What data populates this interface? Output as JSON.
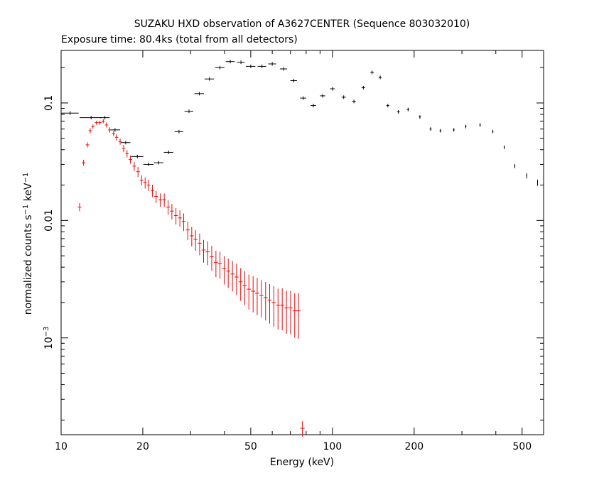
{
  "chart_data": {
    "type": "scatter",
    "title": "SUZAKU HXD observation of A3627CENTER (Sequence 803032010)",
    "subtitle": "Exposure time: 80.4ks (total from all detectors)",
    "xlabel": "Energy (keV)",
    "ylabel": {
      "base": "normalized counts s",
      "sup1": "−1",
      "mid": " keV",
      "sup2": "−1"
    },
    "x_scale": "log",
    "y_scale": "log",
    "xlim": [
      10,
      600
    ],
    "ylim": [
      0.00015,
      0.28
    ],
    "x_ticks": [
      10,
      20,
      50,
      100,
      200,
      500
    ],
    "y_tick_labels": [
      {
        "value": 0.1,
        "text": "0.1"
      },
      {
        "value": 0.01,
        "text": "0.01"
      },
      {
        "value": 0.001,
        "base": "10",
        "exp": "−3"
      }
    ],
    "grid": false,
    "series": [
      {
        "color": "#000000",
        "marker": "cross",
        "x": [
          10.8,
          12.9,
          14.5,
          15.8,
          17.3,
          19.1,
          21.0,
          22.9,
          24.9,
          27.2,
          29.6,
          32.3,
          35.2,
          38.5,
          42.0,
          46.0,
          50.0,
          55.0,
          60.0,
          66.0,
          72.0,
          78.0,
          85.0,
          92.0,
          100.0,
          110.0,
          120.0,
          130.0,
          140.0,
          150.0,
          160.0,
          175.0,
          190.0,
          210.0,
          230.0,
          250.0,
          280.0,
          310.0,
          350.0,
          390.0,
          430.0,
          470.0,
          520.0,
          570.0,
          600.0
        ],
        "y": [
          0.082,
          0.075,
          0.075,
          0.059,
          0.046,
          0.035,
          0.03,
          0.031,
          0.038,
          0.057,
          0.085,
          0.12,
          0.16,
          0.2,
          0.225,
          0.222,
          0.205,
          0.205,
          0.215,
          0.195,
          0.155,
          0.11,
          0.095,
          0.115,
          0.132,
          0.112,
          0.103,
          0.135,
          0.182,
          0.165,
          0.095,
          0.084,
          0.088,
          0.076,
          0.06,
          0.058,
          0.059,
          0.063,
          0.065,
          0.057,
          0.042,
          0.029,
          0.024,
          0.021,
          0.019
        ],
        "xerr": [
          0.8,
          1.2,
          0.6,
          0.7,
          0.7,
          1.0,
          0.9,
          0.9,
          1.0,
          1.0,
          1.1,
          1.3,
          1.4,
          1.5,
          1.6,
          1.5,
          2.0,
          2.0,
          2.0,
          2.0,
          2.0,
          2.0,
          2.0,
          2.0,
          2.0,
          2.0,
          2.0,
          2.0,
          2.0,
          2.0,
          2.0,
          2.0,
          2.0,
          2.0,
          2.0,
          2.0,
          2.0,
          2.0,
          2.0,
          2.0,
          2.0,
          2.0,
          2.0,
          2.0,
          2.0
        ],
        "yerr_frac": [
          0.02,
          0.02,
          0.02,
          0.02,
          0.02,
          0.02,
          0.02,
          0.02,
          0.02,
          0.02,
          0.02,
          0.02,
          0.02,
          0.02,
          0.02,
          0.02,
          0.02,
          0.02,
          0.02,
          0.02,
          0.02,
          0.02,
          0.02,
          0.02,
          0.02,
          0.02,
          0.02,
          0.02,
          0.02,
          0.02,
          0.02,
          0.02,
          0.02,
          0.02,
          0.02,
          0.02,
          0.02,
          0.02,
          0.02,
          0.02,
          0.03,
          0.04,
          0.05,
          0.06,
          0.06
        ]
      },
      {
        "color": "#ff0000",
        "marker": "cross",
        "x": [
          11.7,
          12.1,
          12.5,
          12.8,
          13.1,
          13.5,
          13.9,
          14.3,
          14.7,
          15.1,
          15.6,
          16.0,
          16.5,
          17.0,
          17.5,
          18.0,
          18.6,
          19.2,
          19.8,
          20.4,
          21.0,
          21.7,
          22.4,
          23.2,
          24.0,
          24.8,
          25.6,
          26.5,
          27.4,
          28.3,
          29.3,
          30.3,
          31.3,
          32.4,
          33.5,
          34.7,
          35.9,
          37.2,
          38.5,
          39.9,
          41.3,
          42.8,
          44.3,
          45.9,
          47.5,
          49.2,
          51.0,
          52.8,
          54.7,
          56.7,
          58.7,
          60.8,
          63.0,
          65.3,
          67.7,
          70.1,
          72.6,
          75.0,
          77.5
        ],
        "y": [
          0.013,
          0.031,
          0.044,
          0.058,
          0.063,
          0.068,
          0.068,
          0.07,
          0.065,
          0.059,
          0.055,
          0.051,
          0.047,
          0.041,
          0.037,
          0.033,
          0.029,
          0.026,
          0.022,
          0.021,
          0.02,
          0.018,
          0.016,
          0.015,
          0.015,
          0.013,
          0.012,
          0.011,
          0.0105,
          0.0098,
          0.0083,
          0.0074,
          0.0069,
          0.0064,
          0.0056,
          0.0054,
          0.0049,
          0.0044,
          0.0043,
          0.0039,
          0.0037,
          0.0035,
          0.0033,
          0.003,
          0.0028,
          0.0026,
          0.0025,
          0.0024,
          0.0023,
          0.0022,
          0.0021,
          0.002,
          0.0019,
          0.0019,
          0.0018,
          0.0018,
          0.0017,
          0.0017,
          0.00017
        ],
        "xerr": [
          0.18,
          0.18,
          0.18,
          0.18,
          0.18,
          0.19,
          0.19,
          0.19,
          0.2,
          0.2,
          0.2,
          0.22,
          0.22,
          0.24,
          0.24,
          0.26,
          0.26,
          0.28,
          0.28,
          0.3,
          0.3,
          0.32,
          0.34,
          0.36,
          0.38,
          0.38,
          0.4,
          0.42,
          0.44,
          0.46,
          0.48,
          0.5,
          0.5,
          0.52,
          0.55,
          0.58,
          0.6,
          0.62,
          0.65,
          0.68,
          0.7,
          0.72,
          0.75,
          0.78,
          0.8,
          0.85,
          0.9,
          0.92,
          0.95,
          1.0,
          1.0,
          1.05,
          1.1,
          1.15,
          1.2,
          1.2,
          1.25,
          1.3,
          1.5
        ],
        "yerr_frac": [
          0.08,
          0.06,
          0.05,
          0.05,
          0.04,
          0.04,
          0.04,
          0.04,
          0.05,
          0.05,
          0.05,
          0.06,
          0.06,
          0.07,
          0.07,
          0.08,
          0.09,
          0.1,
          0.1,
          0.11,
          0.11,
          0.12,
          0.12,
          0.13,
          0.13,
          0.14,
          0.15,
          0.16,
          0.16,
          0.17,
          0.18,
          0.19,
          0.2,
          0.21,
          0.22,
          0.23,
          0.24,
          0.25,
          0.26,
          0.27,
          0.28,
          0.29,
          0.3,
          0.31,
          0.32,
          0.33,
          0.34,
          0.35,
          0.35,
          0.36,
          0.37,
          0.38,
          0.38,
          0.39,
          0.4,
          0.4,
          0.41,
          0.42,
          0.15
        ]
      }
    ]
  }
}
